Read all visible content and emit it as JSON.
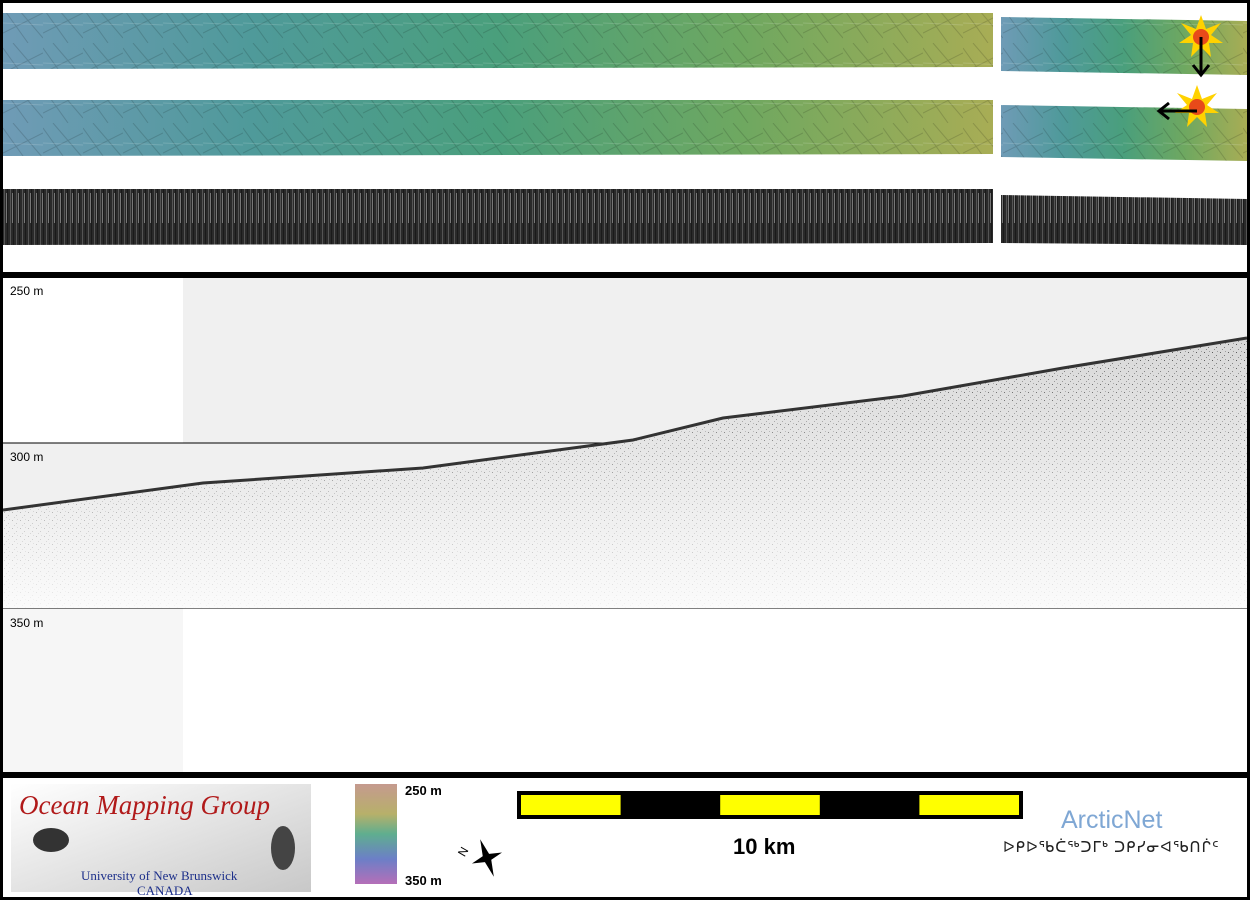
{
  "profile": {
    "depth_labels": [
      "250 m",
      "300 m",
      "350 m"
    ]
  },
  "sun_icons": [
    "sun-illumination-icon-vertical",
    "sun-illumination-icon-horizontal"
  ],
  "footer": {
    "ocean_mapping": {
      "title": "Ocean Mapping Group",
      "subtitle_1": "University of New Brunswick",
      "subtitle_2": "CANADA"
    },
    "colorbar": {
      "top_label": "250 m",
      "bottom_label": "350 m"
    },
    "scale": {
      "label": "10 km",
      "segments": 5
    },
    "arcticnet": {
      "name": "ArcticNet",
      "syllabics": "ᐅᑭᐅᖃᑖᖅᑐᒥᒃ ᑐᑭᓯᓂᐊᖃᑎᒌᑦ"
    }
  },
  "colors": {
    "frame": "#000000",
    "scale_yellow": "#ffff00",
    "omg_red": "#b11a1a",
    "omg_blue": "#1c2f8a",
    "arcticnet_blue": "#7fa7d4"
  }
}
